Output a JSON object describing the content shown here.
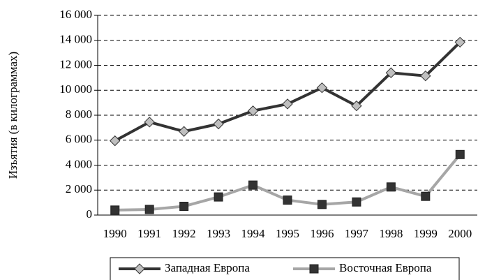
{
  "chart_data": {
    "type": "line",
    "y_axis_label": "Изъятия (в килограммах)",
    "categories": [
      "1990",
      "1991",
      "1992",
      "1993",
      "1994",
      "1995",
      "1996",
      "1997",
      "1998",
      "1999",
      "2000"
    ],
    "series": [
      {
        "name": "Западная Европа",
        "color": "#333333",
        "marker": "diamond",
        "marker_color": "#bfbfbf",
        "values": [
          5950,
          7450,
          6700,
          7300,
          8350,
          8900,
          10200,
          8750,
          11400,
          11150,
          13850
        ]
      },
      {
        "name": "Восточная Европа",
        "color": "#a6a6a6",
        "marker": "square",
        "marker_color": "#333333",
        "values": [
          400,
          450,
          700,
          1450,
          2400,
          1200,
          850,
          1050,
          2250,
          1500,
          4850
        ]
      }
    ],
    "ylim": [
      0,
      16000
    ],
    "yticks": [
      0,
      {
        "value": 2000,
        "label": "2 000"
      },
      {
        "value": 4000,
        "label": "4 000"
      },
      {
        "value": 6000,
        "label": "6 000"
      },
      {
        "value": 8000,
        "label": "8 000"
      },
      {
        "value": 10000,
        "label": "10 000"
      },
      {
        "value": 12000,
        "label": "12 000"
      },
      {
        "value": 14000,
        "label": "14 000"
      },
      {
        "value": 16000,
        "label": "16 000"
      }
    ],
    "grid": true,
    "legend": "bottom"
  }
}
